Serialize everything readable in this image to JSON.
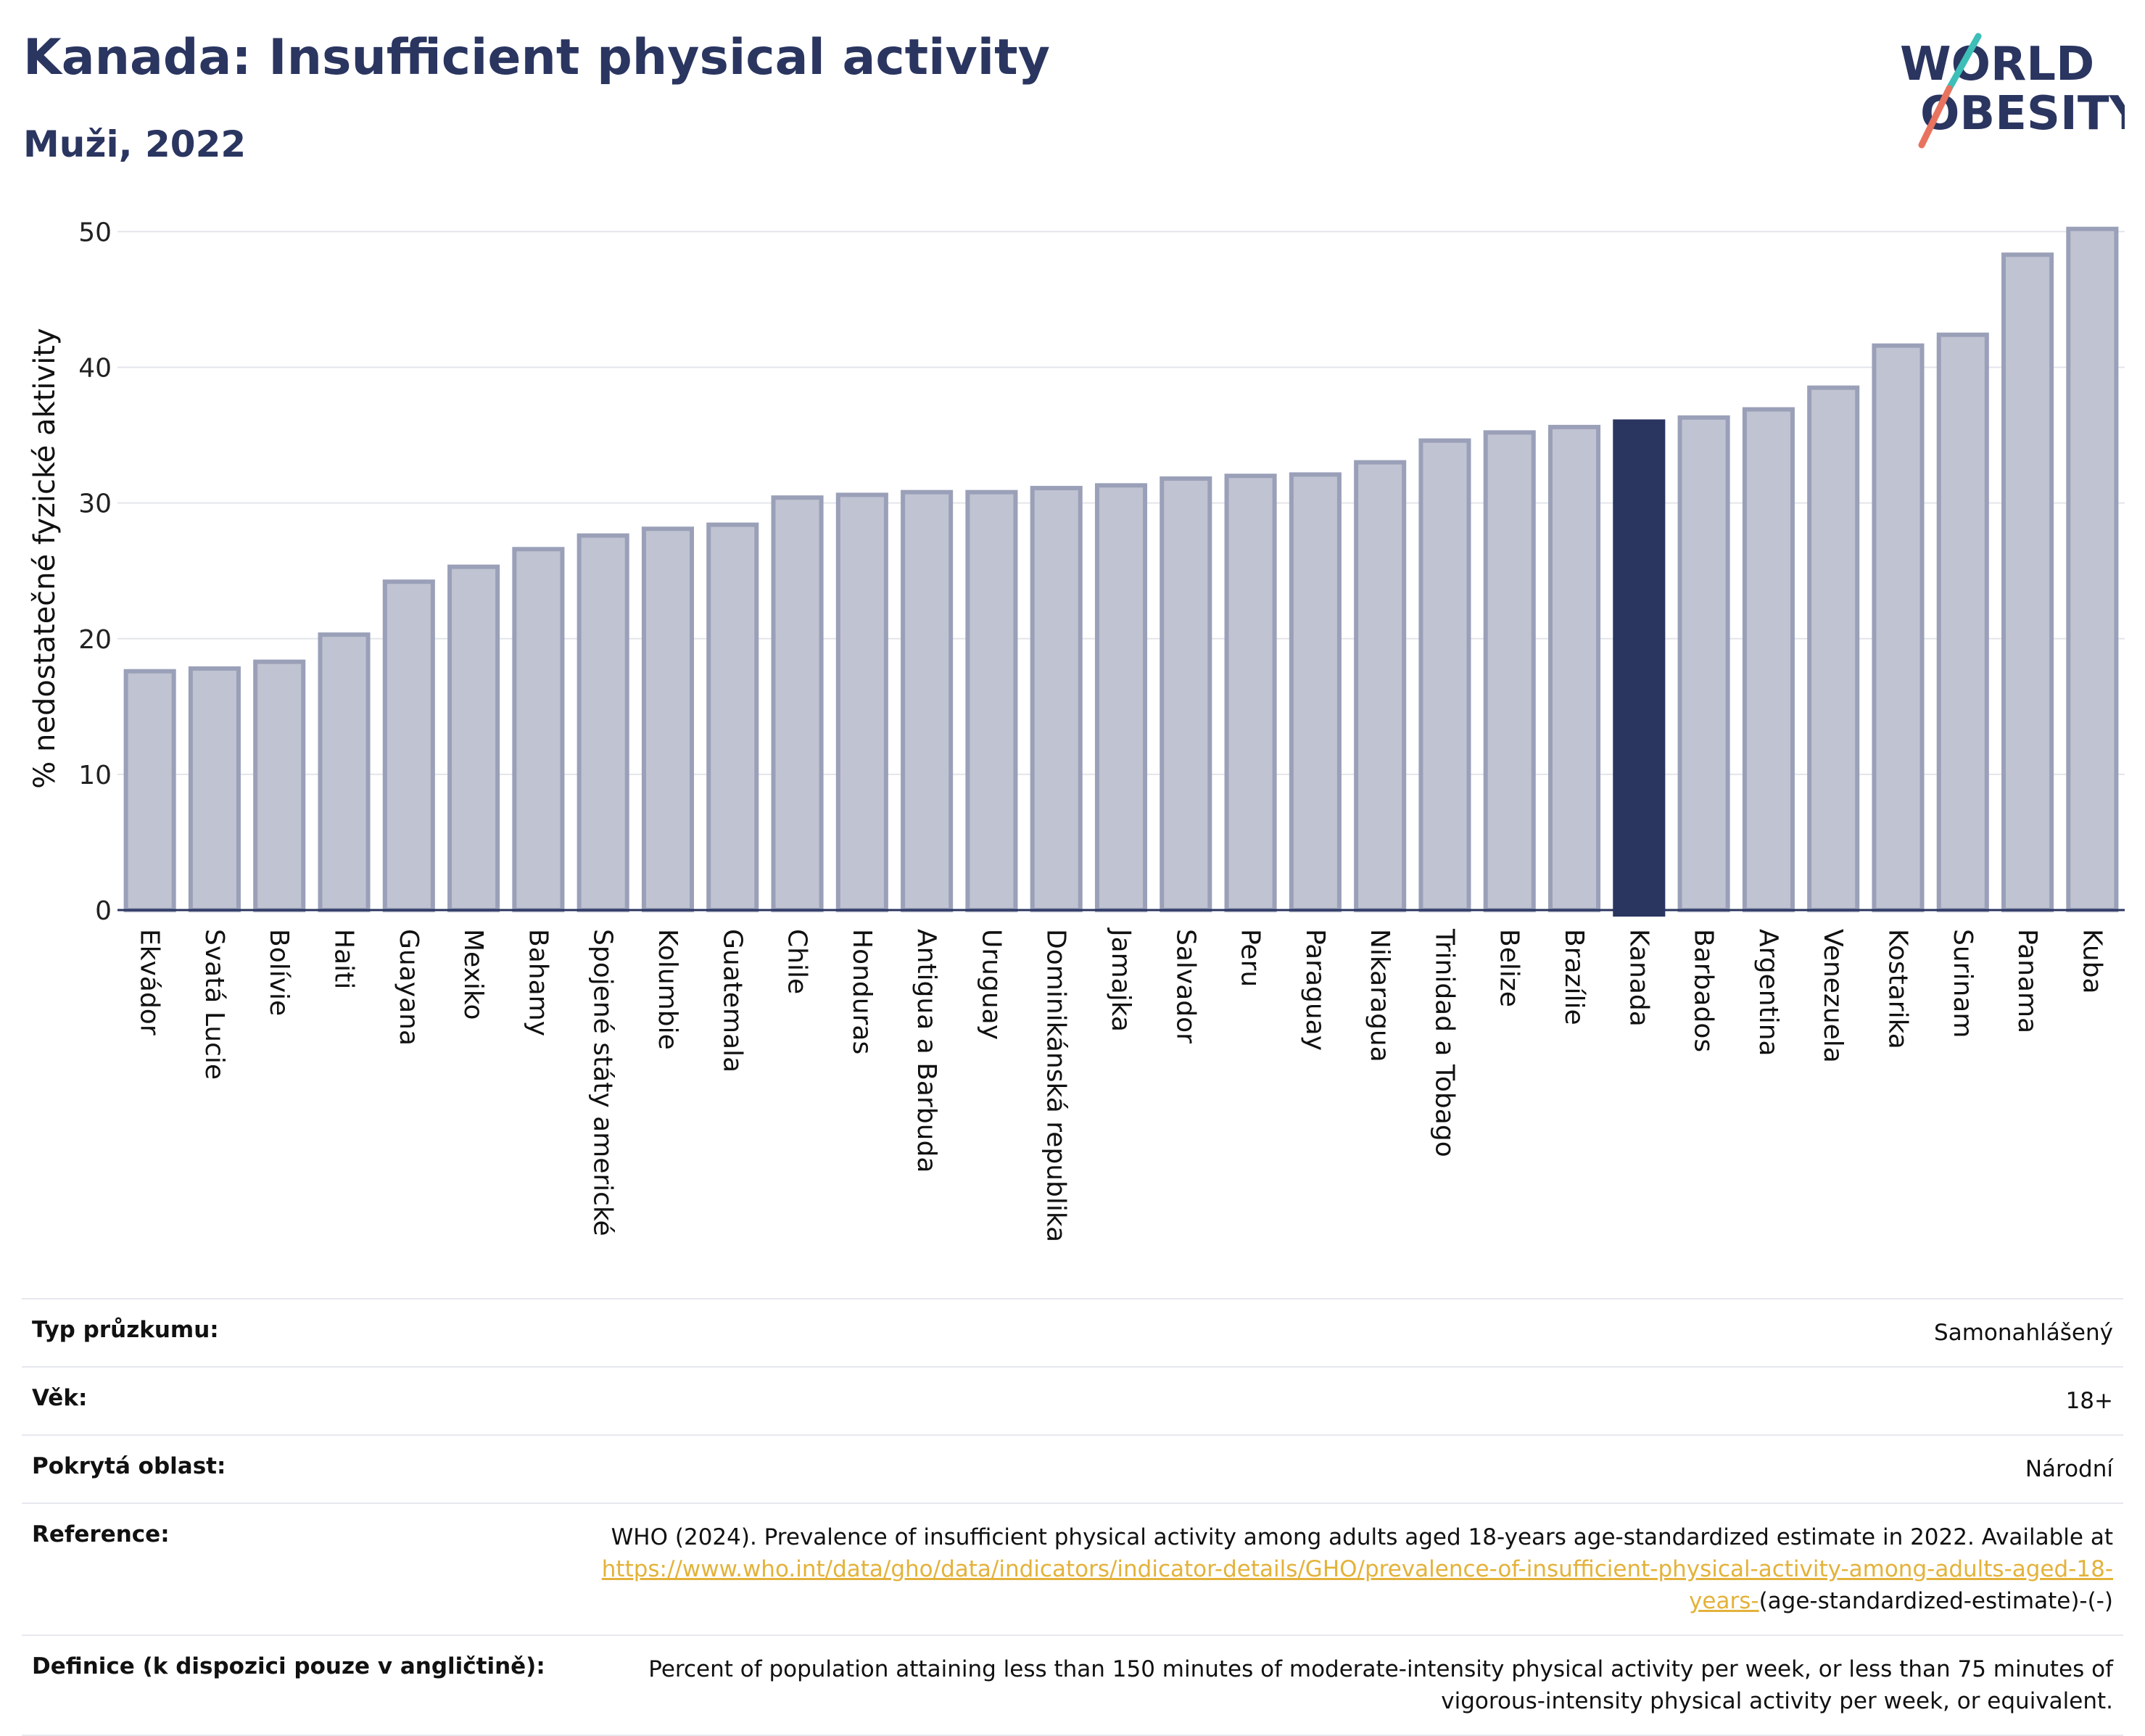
{
  "header": {
    "title": "Kanada: Insufficient physical activity",
    "subtitle": "Muži, 2022"
  },
  "logo": {
    "line1": "WORLD",
    "line2": "OBESITY",
    "slash_colors": [
      "#3dbfb8",
      "#e8735f"
    ]
  },
  "colors": {
    "bar": "#c0c3d1",
    "bar_stroke": "#9aa0b8",
    "highlight": "#2a3560",
    "axis": "#2a3560",
    "grid": "#e3e5eb",
    "link": "#e3b23a"
  },
  "chart_data": {
    "type": "bar",
    "title": "Kanada: Insufficient physical activity",
    "subtitle": "Muži, 2022",
    "ylabel": "% nedostatečné fyzické aktivity",
    "xlabel": "",
    "ylim": [
      0,
      52
    ],
    "yticks": [
      0,
      10,
      20,
      30,
      40,
      50
    ],
    "grid": true,
    "highlight": "Kanada",
    "categories": [
      "Ekvádor",
      "Svatá Lucie",
      "Bolívie",
      "Haiti",
      "Guayana",
      "Mexiko",
      "Bahamy",
      "Spojené státy americké",
      "Kolumbie",
      "Guatemala",
      "Chile",
      "Honduras",
      "Antigua a Barbuda",
      "Uruguay",
      "Dominikánská republika",
      "Jamajka",
      "Salvador",
      "Peru",
      "Paraguay",
      "Nikaragua",
      "Trinidad a Tobago",
      "Belize",
      "Brazílie",
      "Kanada",
      "Barbados",
      "Argentina",
      "Venezuela",
      "Kostarika",
      "Surinam",
      "Panama",
      "Kuba"
    ],
    "values": [
      17.6,
      17.8,
      18.3,
      20.3,
      24.2,
      25.3,
      26.6,
      27.6,
      28.1,
      28.4,
      30.4,
      30.6,
      30.8,
      30.8,
      31.1,
      31.3,
      31.8,
      32.0,
      32.1,
      33.0,
      34.6,
      35.2,
      35.6,
      36.0,
      36.3,
      36.9,
      38.5,
      41.6,
      42.4,
      48.3,
      50.2
    ]
  },
  "info": {
    "rows": [
      {
        "label": "Typ průzkumu:",
        "value": "Samonahlášený"
      },
      {
        "label": "Věk:",
        "value": "18+"
      },
      {
        "label": "Pokrytá oblast:",
        "value": "Národní"
      }
    ],
    "reference": {
      "label": "Reference:",
      "text_before": "WHO (2024). Prevalence of insufficient physical activity among adults aged 18-years age-standardized estimate in 2022. Available at",
      "link": "https://www.who.int/data/gho/data/indicators/indicator-details/GHO/prevalence-of-insufficient-physical-activity-among-adults-aged-18-years-",
      "text_after": "(age-standardized-estimate)-(-)"
    },
    "definition": {
      "label": "Definice (k dispozici pouze v angličtině):",
      "value": "Percent of population attaining less than 150 minutes of moderate-intensity physical activity per week, or less than 75 minutes of vigorous-intensity physical activity per week, or equivalent."
    }
  }
}
